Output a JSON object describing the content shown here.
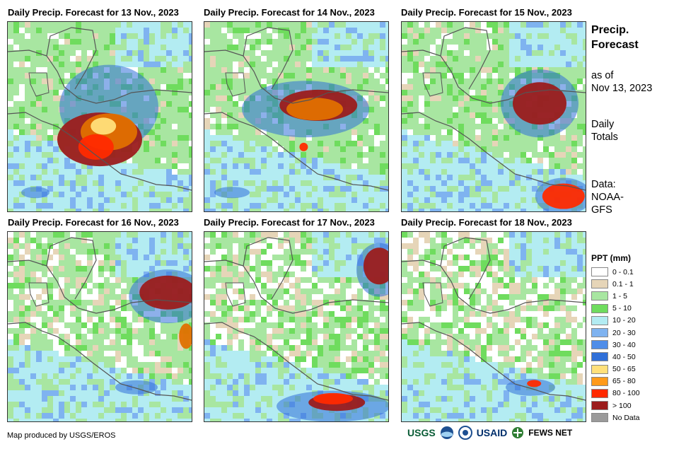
{
  "panels": [
    {
      "title": "Daily Precip. Forecast for 13 Nov., 2023",
      "wet": [
        [
          0.5,
          0.62,
          60,
          38,
          "#9b1c1c"
        ],
        [
          0.55,
          0.58,
          40,
          26,
          "#e07000"
        ],
        [
          0.48,
          0.66,
          25,
          18,
          "#ff2a00"
        ],
        [
          0.52,
          0.55,
          18,
          12,
          "#ffe07a"
        ],
        [
          0.55,
          0.45,
          70,
          60,
          "#2f6fd8"
        ],
        [
          0.15,
          0.9,
          20,
          8,
          "#2f6fd8"
        ]
      ]
    },
    {
      "title": "Daily Precip. Forecast for 14 Nov., 2023",
      "wet": [
        [
          0.62,
          0.44,
          55,
          22,
          "#9b1c1c"
        ],
        [
          0.6,
          0.46,
          40,
          16,
          "#e07000"
        ],
        [
          0.55,
          0.46,
          90,
          40,
          "#2f6fd8"
        ],
        [
          0.54,
          0.66,
          6,
          6,
          "#ff2a00"
        ],
        [
          0.15,
          0.9,
          25,
          8,
          "#2f6fd8"
        ]
      ]
    },
    {
      "title": "Daily Precip. Forecast for 15 Nov., 2023",
      "wet": [
        [
          0.75,
          0.43,
          38,
          30,
          "#9b1c1c"
        ],
        [
          0.75,
          0.43,
          55,
          48,
          "#2f6fd8"
        ],
        [
          0.88,
          0.92,
          30,
          18,
          "#ff2a00"
        ],
        [
          0.88,
          0.92,
          40,
          26,
          "#2f6fd8"
        ]
      ]
    },
    {
      "title": "Daily Precip. Forecast for 16 Nov., 2023",
      "wet": [
        [
          0.87,
          0.32,
          40,
          24,
          "#9b1c1c"
        ],
        [
          0.87,
          0.34,
          55,
          38,
          "#2f6fd8"
        ],
        [
          0.7,
          0.82,
          30,
          10,
          "#2f6fd8"
        ],
        [
          0.97,
          0.55,
          10,
          18,
          "#e07000"
        ]
      ]
    },
    {
      "title": "Daily Precip. Forecast for 17 Nov., 2023",
      "wet": [
        [
          0.95,
          0.18,
          22,
          26,
          "#9b1c1c"
        ],
        [
          0.95,
          0.2,
          32,
          38,
          "#2f6fd8"
        ],
        [
          0.72,
          0.9,
          40,
          12,
          "#9b1c1c"
        ],
        [
          0.7,
          0.92,
          80,
          22,
          "#2f6fd8"
        ],
        [
          0.7,
          0.88,
          28,
          8,
          "#ff2a00"
        ]
      ]
    },
    {
      "title": "Daily Precip. Forecast for 18 Nov., 2023",
      "wet": [
        [
          0.7,
          0.82,
          35,
          12,
          "#2f6fd8"
        ],
        [
          0.72,
          0.8,
          10,
          5,
          "#ff2a00"
        ]
      ]
    }
  ],
  "side": {
    "title_line1": "Precip.",
    "title_line2": "Forecast",
    "asof_line1": "as of",
    "asof_line2": "Nov 13, 2023",
    "daily_line1": "Daily",
    "daily_line2": "Totals",
    "data_line1": "Data:",
    "data_line2": "NOAA-",
    "data_line3": "GFS"
  },
  "legend": {
    "title": "PPT (mm)",
    "items": [
      {
        "label": "0 - 0.1",
        "color": "#ffffff"
      },
      {
        "label": "0.1 - 1",
        "color": "#e6d5b8"
      },
      {
        "label": "1 - 5",
        "color": "#a8e6a1"
      },
      {
        "label": "5 - 10",
        "color": "#6fdc5e"
      },
      {
        "label": "10 - 20",
        "color": "#b3ecf2"
      },
      {
        "label": "20 - 30",
        "color": "#7fb3f0"
      },
      {
        "label": "30 - 40",
        "color": "#4f8de8"
      },
      {
        "label": "40 - 50",
        "color": "#2f6fd8"
      },
      {
        "label": "50 - 65",
        "color": "#ffe07a"
      },
      {
        "label": "65 - 80",
        "color": "#ff9a1a"
      },
      {
        "label": "80 - 100",
        "color": "#ff2a00"
      },
      {
        "label": "> 100",
        "color": "#9b1c1c"
      },
      {
        "label": "No Data",
        "color": "#9a9a9a"
      }
    ]
  },
  "credit": "Map produced by USGS/EROS",
  "logos": {
    "usgs": "USGS",
    "usaid": "USAID",
    "fewsnet": "FEWS NET"
  }
}
